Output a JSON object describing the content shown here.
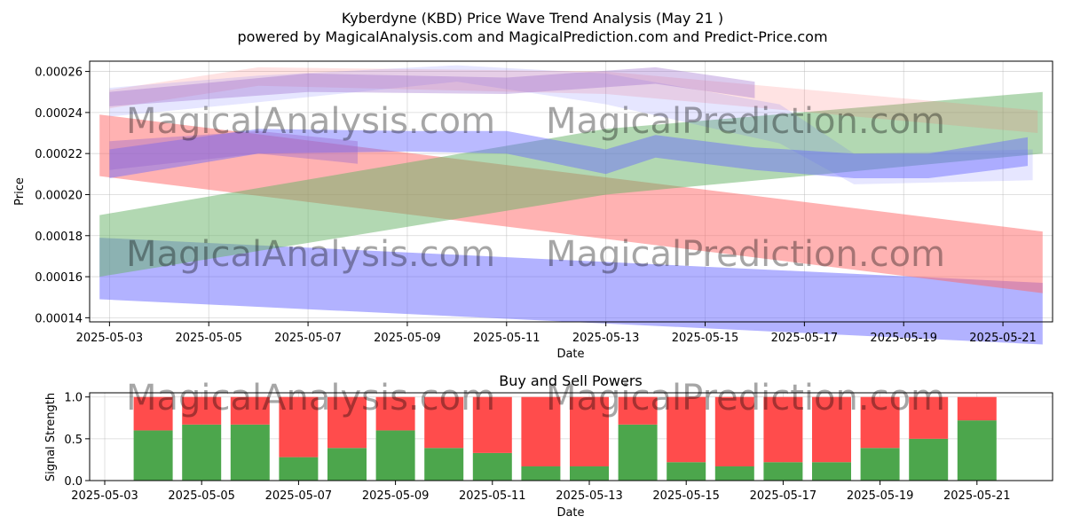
{
  "figure": {
    "title_line1": "Kyberdyne (KBD) Price Wave Trend Analysis (May 21 )",
    "title_line2": "powered by MagicalAnalysis.com and MagicalPrediction.com and Predict-Price.com",
    "watermarks": [
      "MagicalAnalysis.com",
      "MagicalPrediction.com"
    ]
  },
  "colors": {
    "green": "#4ca64c",
    "red": "#ff4c4c",
    "blue_band": "#6666ff",
    "red_band": "#ff6666",
    "green_band": "#66b266",
    "purple_band": "#9966cc",
    "watermark": "#cccccc"
  },
  "chart_data": [
    {
      "type": "area",
      "title": "",
      "xlabel": "Date",
      "ylabel": "Price",
      "x_ticks": [
        "2025-05-03",
        "2025-05-05",
        "2025-05-07",
        "2025-05-09",
        "2025-05-11",
        "2025-05-13",
        "2025-05-15",
        "2025-05-17",
        "2025-05-19",
        "2025-05-21"
      ],
      "y_ticks": [
        "0.00014",
        "0.00016",
        "0.00018",
        "0.00020",
        "0.00022",
        "0.00024",
        "0.00026"
      ],
      "xlim": [
        "2025-05-02.6",
        "2025-05-22.0"
      ],
      "ylim": [
        0.000138,
        0.000265
      ],
      "grid": true,
      "bands": [
        {
          "color": "blue",
          "opacity": 0.5,
          "upper": [
            [
              "2025-05-02.8",
              0.000179
            ],
            [
              "2025-05-21.8",
              0.000157
            ]
          ],
          "lower": [
            [
              "2025-05-02.8",
              0.000149
            ],
            [
              "2025-05-21.8",
              0.000127
            ]
          ]
        },
        {
          "color": "red",
          "opacity": 0.5,
          "upper": [
            [
              "2025-05-02.8",
              0.000239
            ],
            [
              "2025-05-21.8",
              0.000182
            ]
          ],
          "lower": [
            [
              "2025-05-02.8",
              0.000209
            ],
            [
              "2025-05-21.8",
              0.000152
            ]
          ]
        },
        {
          "color": "green",
          "opacity": 0.5,
          "upper": [
            [
              "2025-05-02.8",
              0.00019
            ],
            [
              "2025-05-13.0",
              0.000232
            ],
            [
              "2025-05-21.8",
              0.00025
            ]
          ],
          "lower": [
            [
              "2025-05-02.8",
              0.00016
            ],
            [
              "2025-05-13.0",
              0.0002
            ],
            [
              "2025-05-21.8",
              0.00022
            ]
          ]
        },
        {
          "color": "red",
          "opacity": 0.18,
          "upper": [
            [
              "2025-05-03.0",
              0.000251
            ],
            [
              "2025-05-06.0",
              0.000262
            ],
            [
              "2025-05-13.0",
              0.00026
            ],
            [
              "2025-05-21.7",
              0.000241
            ]
          ],
          "lower": [
            [
              "2025-05-03.0",
              0.000242
            ],
            [
              "2025-05-06.0",
              0.000253
            ],
            [
              "2025-05-13.0",
              0.000249
            ],
            [
              "2025-05-21.7",
              0.00023
            ]
          ]
        },
        {
          "color": "blue",
          "opacity": 0.16,
          "upper": [
            [
              "2025-05-03.0",
              0.000252
            ],
            [
              "2025-05-06.0",
              0.000258
            ],
            [
              "2025-05-10.0",
              0.000263
            ],
            [
              "2025-05-13.0",
              0.000259
            ],
            [
              "2025-05-16.5",
              0.000244
            ],
            [
              "2025-05-18.0",
              0.00022
            ],
            [
              "2025-05-21.6",
              0.000222
            ]
          ],
          "lower": [
            [
              "2025-05-03.0",
              0.000238
            ],
            [
              "2025-05-06.0",
              0.000245
            ],
            [
              "2025-05-10.0",
              0.000255
            ],
            [
              "2025-05-13.0",
              0.000244
            ],
            [
              "2025-05-16.5",
              0.000225
            ],
            [
              "2025-05-18.0",
              0.000205
            ],
            [
              "2025-05-21.6",
              0.000207
            ]
          ]
        },
        {
          "color": "purple",
          "opacity": 0.35,
          "upper": [
            [
              "2025-05-03.0",
              0.00025
            ],
            [
              "2025-05-07.0",
              0.000259
            ],
            [
              "2025-05-11.0",
              0.000257
            ],
            [
              "2025-05-14.0",
              0.000262
            ],
            [
              "2025-05-16.0",
              0.000255
            ]
          ],
          "lower": [
            [
              "2025-05-03.0",
              0.000243
            ],
            [
              "2025-05-07.0",
              0.00025
            ],
            [
              "2025-05-11.0",
              0.000249
            ],
            [
              "2025-05-14.0",
              0.000254
            ],
            [
              "2025-05-16.0",
              0.000247
            ]
          ]
        },
        {
          "color": "blue",
          "opacity": 0.45,
          "upper": [
            [
              "2025-05-03.0",
              0.000222
            ],
            [
              "2025-05-06.0",
              0.000232
            ],
            [
              "2025-05-09.0",
              0.000231
            ],
            [
              "2025-05-11.0",
              0.000231
            ],
            [
              "2025-05-13.0",
              0.000222
            ],
            [
              "2025-05-14.0",
              0.000229
            ],
            [
              "2025-05-16.0",
              0.000223
            ],
            [
              "2025-05-18.0",
              0.00022
            ],
            [
              "2025-05-19.5",
              0.00022
            ],
            [
              "2025-05-21.5",
              0.000228
            ]
          ],
          "lower": [
            [
              "2025-05-03.0",
              0.000208
            ],
            [
              "2025-05-06.0",
              0.00022
            ],
            [
              "2025-05-09.0",
              0.000221
            ],
            [
              "2025-05-11.0",
              0.00022
            ],
            [
              "2025-05-13.0",
              0.00021
            ],
            [
              "2025-05-14.0",
              0.000218
            ],
            [
              "2025-05-16.0",
              0.000212
            ],
            [
              "2025-05-18.0",
              0.000208
            ],
            [
              "2025-05-19.5",
              0.000208
            ],
            [
              "2025-05-21.5",
              0.000214
            ]
          ]
        },
        {
          "color": "purple",
          "opacity": 0.4,
          "upper": [
            [
              "2025-05-03.0",
              0.000226
            ],
            [
              "2025-05-06.0",
              0.000231
            ],
            [
              "2025-05-08.0",
              0.000226
            ]
          ],
          "lower": [
            [
              "2025-05-03.0",
              0.000212
            ],
            [
              "2025-05-06.0",
              0.00022
            ],
            [
              "2025-05-08.0",
              0.000215
            ]
          ]
        }
      ]
    },
    {
      "type": "bar",
      "title": "Buy and Sell Powers",
      "xlabel": "Date",
      "ylabel": "Signal Strength",
      "x_ticks": [
        "2025-05-03",
        "2025-05-05",
        "2025-05-07",
        "2025-05-09",
        "2025-05-11",
        "2025-05-13",
        "2025-05-15",
        "2025-05-17",
        "2025-05-19",
        "2025-05-21"
      ],
      "y_ticks": [
        "0.0",
        "0.5",
        "1.0"
      ],
      "ylim": [
        0,
        1.05
      ],
      "grid": true,
      "categories": [
        "2025-05-04",
        "2025-05-05",
        "2025-05-06",
        "2025-05-07",
        "2025-05-08",
        "2025-05-09",
        "2025-05-10",
        "2025-05-11",
        "2025-05-12",
        "2025-05-13",
        "2025-05-14",
        "2025-05-15",
        "2025-05-16",
        "2025-05-17",
        "2025-05-18",
        "2025-05-19",
        "2025-05-20",
        "2025-05-21"
      ],
      "series": [
        {
          "values": [
            0.6,
            0.67,
            0.67,
            0.28,
            0.39,
            0.6,
            0.39,
            0.33,
            0.17,
            0.17,
            0.67,
            0.22,
            0.17,
            0.22,
            0.22,
            0.39,
            0.5,
            0.72
          ]
        },
        {
          "values": [
            0.4,
            0.33,
            0.33,
            0.72,
            0.61,
            0.4,
            0.61,
            0.67,
            0.83,
            0.83,
            0.33,
            0.78,
            0.83,
            0.78,
            0.78,
            0.61,
            0.5,
            0.28
          ]
        }
      ]
    }
  ]
}
